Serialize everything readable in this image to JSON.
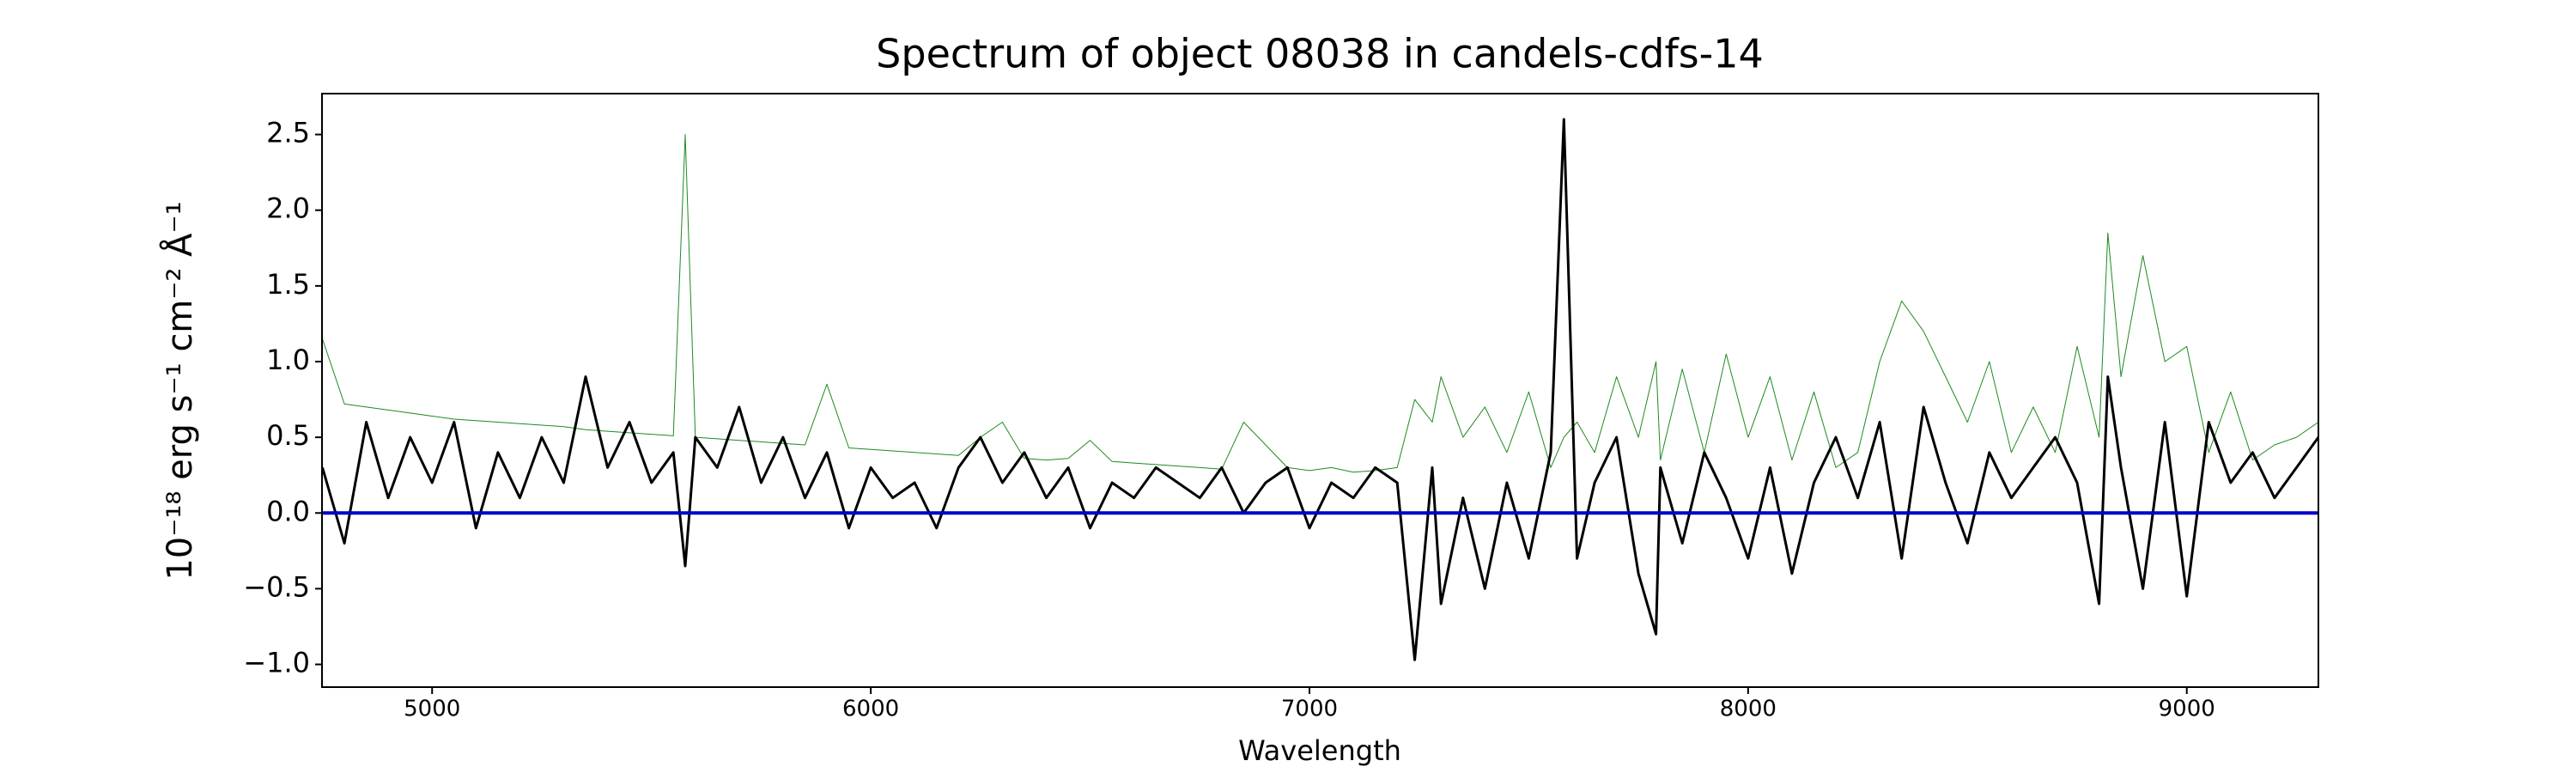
{
  "chart_data": {
    "type": "line",
    "title": "Spectrum of object 08038 in candels-cdfs-14",
    "xlabel": "Wavelength",
    "ylabel": "10⁻¹⁸ erg s⁻¹ cm⁻² Å⁻¹",
    "x": [
      4750,
      4800,
      4850,
      4900,
      4950,
      5000,
      5050,
      5100,
      5150,
      5200,
      5250,
      5300,
      5350,
      5400,
      5450,
      5500,
      5550,
      5577,
      5600,
      5650,
      5700,
      5750,
      5800,
      5850,
      5900,
      5950,
      6000,
      6050,
      6100,
      6150,
      6200,
      6250,
      6300,
      6350,
      6400,
      6450,
      6500,
      6550,
      6600,
      6650,
      6700,
      6750,
      6800,
      6850,
      6900,
      6950,
      7000,
      7050,
      7100,
      7150,
      7200,
      7240,
      7280,
      7300,
      7350,
      7400,
      7450,
      7500,
      7550,
      7580,
      7610,
      7650,
      7700,
      7750,
      7790,
      7800,
      7850,
      7900,
      7950,
      8000,
      8050,
      8100,
      8150,
      8200,
      8250,
      8300,
      8350,
      8400,
      8450,
      8500,
      8550,
      8600,
      8650,
      8700,
      8750,
      8800,
      8820,
      8850,
      8900,
      8950,
      9000,
      9050,
      9100,
      9150,
      9200,
      9250,
      9300
    ],
    "series": [
      {
        "color": "#1f8a1f",
        "width": 1,
        "values": [
          1.15,
          0.72,
          0.7,
          0.68,
          0.66,
          0.64,
          0.62,
          0.61,
          0.6,
          0.59,
          0.58,
          0.57,
          0.55,
          0.54,
          0.53,
          0.52,
          0.51,
          2.5,
          0.5,
          0.49,
          0.48,
          0.47,
          0.46,
          0.45,
          0.85,
          0.43,
          0.42,
          0.41,
          0.4,
          0.39,
          0.38,
          0.5,
          0.6,
          0.36,
          0.35,
          0.36,
          0.48,
          0.34,
          0.33,
          0.32,
          0.31,
          0.3,
          0.29,
          0.6,
          0.45,
          0.3,
          0.28,
          0.3,
          0.27,
          0.28,
          0.3,
          0.75,
          0.6,
          0.9,
          0.5,
          0.7,
          0.4,
          0.8,
          0.3,
          0.5,
          0.6,
          0.4,
          0.9,
          0.5,
          1.0,
          0.35,
          0.95,
          0.4,
          1.05,
          0.5,
          0.9,
          0.35,
          0.8,
          0.3,
          0.4,
          1.0,
          1.4,
          1.2,
          0.9,
          0.6,
          1.0,
          0.4,
          0.7,
          0.4,
          1.1,
          0.5,
          1.85,
          0.9,
          1.7,
          1.0,
          1.1,
          0.4,
          0.8,
          0.35,
          0.45,
          0.5,
          0.6
        ]
      },
      {
        "color": "#000000",
        "width": 3,
        "values": [
          0.3,
          -0.2,
          0.6,
          0.1,
          0.5,
          0.2,
          0.6,
          -0.1,
          0.4,
          0.1,
          0.5,
          0.2,
          0.9,
          0.3,
          0.6,
          0.2,
          0.4,
          -0.35,
          0.5,
          0.3,
          0.7,
          0.2,
          0.5,
          0.1,
          0.4,
          -0.1,
          0.3,
          0.1,
          0.2,
          -0.1,
          0.3,
          0.5,
          0.2,
          0.4,
          0.1,
          0.3,
          -0.1,
          0.2,
          0.1,
          0.3,
          0.2,
          0.1,
          0.3,
          0.0,
          0.2,
          0.3,
          -0.1,
          0.2,
          0.1,
          0.3,
          0.2,
          -0.97,
          0.3,
          -0.6,
          0.1,
          -0.5,
          0.2,
          -0.3,
          0.4,
          2.6,
          -0.3,
          0.2,
          0.5,
          -0.4,
          -0.8,
          0.3,
          -0.2,
          0.4,
          0.1,
          -0.3,
          0.3,
          -0.4,
          0.2,
          0.5,
          0.1,
          0.6,
          -0.3,
          0.7,
          0.2,
          -0.2,
          0.4,
          0.1,
          0.3,
          0.5,
          0.2,
          -0.6,
          0.9,
          0.3,
          -0.5,
          0.6,
          -0.55,
          0.6,
          0.2,
          0.4,
          0.1,
          0.3,
          0.5
        ]
      },
      {
        "color": "#0000cc",
        "width": 4,
        "values": [
          0,
          0,
          0,
          0,
          0,
          0,
          0,
          0,
          0,
          0,
          0,
          0,
          0,
          0,
          0,
          0,
          0,
          0,
          0,
          0,
          0,
          0,
          0,
          0,
          0,
          0,
          0,
          0,
          0,
          0,
          0,
          0,
          0,
          0,
          0,
          0,
          0,
          0,
          0,
          0,
          0,
          0,
          0,
          0,
          0,
          0,
          0,
          0,
          0,
          0,
          0,
          0,
          0,
          0,
          0,
          0,
          0,
          0,
          0,
          0,
          0,
          0,
          0,
          0,
          0,
          0,
          0,
          0,
          0,
          0,
          0,
          0,
          0,
          0,
          0,
          0,
          0,
          0,
          0,
          0,
          0,
          0,
          0,
          0,
          0,
          0,
          0,
          0,
          0,
          0,
          0,
          0,
          0,
          0,
          0,
          0,
          0
        ]
      }
    ],
    "xlim": [
      4749,
      9300
    ],
    "ylim": [
      -1.15,
      2.77
    ],
    "xticks": [
      5000,
      6000,
      7000,
      8000,
      9000
    ],
    "yticks": [
      {
        "value": -1,
        "label": "−1.0"
      },
      {
        "value": -0.5,
        "label": "−0.5"
      },
      {
        "value": 0,
        "label": "0.0"
      },
      {
        "value": 0.5,
        "label": "0.5"
      },
      {
        "value": 1,
        "label": "1.0"
      },
      {
        "value": 1.5,
        "label": "1.5"
      },
      {
        "value": 2,
        "label": "2.0"
      },
      {
        "value": 2.5,
        "label": "2.5"
      }
    ]
  }
}
